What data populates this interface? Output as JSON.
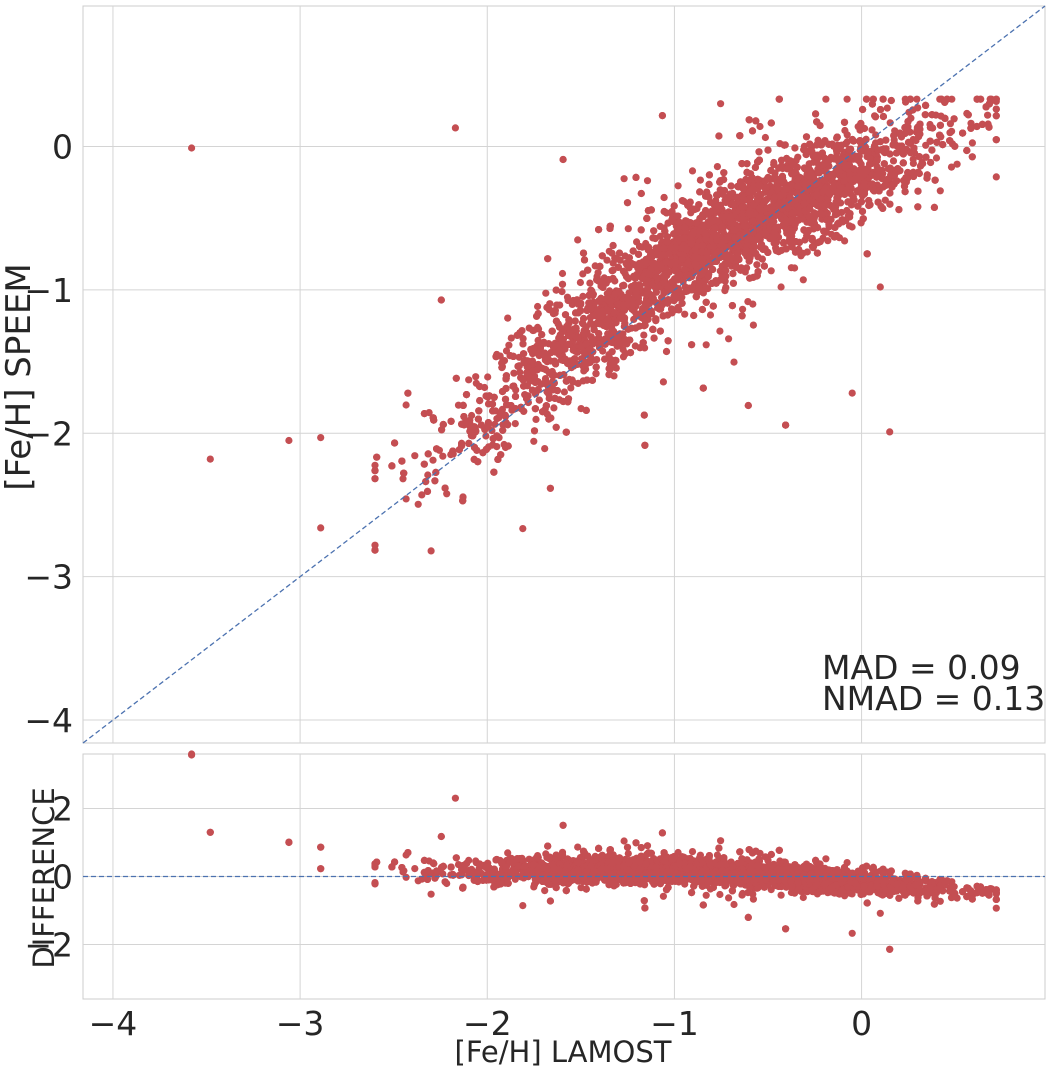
{
  "chart_data": [
    {
      "type": "scatter",
      "panel": "top",
      "xlabel": "",
      "ylabel": "[Fe/H]  SPEEM",
      "xlim": [
        -4.16,
        0.98
      ],
      "ylim": [
        -4.16,
        0.98
      ],
      "xticks": [
        -4,
        -3,
        -2,
        -1,
        0
      ],
      "yticks": [
        -4,
        -3,
        -2,
        -1,
        0
      ],
      "ytick_labels": [
        "−4",
        "−3",
        "−2",
        "−1",
        "0"
      ],
      "grid": true,
      "point_color": "#c44e52",
      "reference_line": {
        "type": "one-to-one",
        "style": "dashed",
        "color": "#4c72b0"
      },
      "annotations": [
        "MAD = 0.09",
        "NMAD = 0.13"
      ],
      "annotation_position": "bottom-right",
      "outliers": [
        {
          "x": -3.58,
          "y": -0.01
        },
        {
          "x": -3.48,
          "y": -2.18
        },
        {
          "x": -3.06,
          "y": -2.05
        },
        {
          "x": -2.89,
          "y": -2.03
        },
        {
          "x": -2.89,
          "y": -2.66
        },
        {
          "x": -2.3,
          "y": -2.82
        },
        {
          "x": -2.17,
          "y": 0.13
        },
        {
          "x": 0.15,
          "y": -1.99
        },
        {
          "x": 0.1,
          "y": -0.98
        },
        {
          "x": -0.05,
          "y": -1.72
        }
      ],
      "cloud": {
        "description_points": "dense cloud following slope ~0.66 above [Fe/H]=-1 and ~1:1 below",
        "x_range": [
          -2.6,
          0.72
        ],
        "y_range": [
          -2.83,
          0.33
        ]
      }
    },
    {
      "type": "scatter",
      "panel": "bottom",
      "xlabel": "[Fe/H]  LAMOST",
      "ylabel": "DIFFERENCE",
      "xlim": [
        -4.16,
        0.98
      ],
      "ylim": [
        -3.6,
        3.6
      ],
      "xticks": [
        -4,
        -3,
        -2,
        -1,
        0
      ],
      "xtick_labels": [
        "−4",
        "−3",
        "−2",
        "−1",
        "0"
      ],
      "yticks": [
        -2,
        0,
        2
      ],
      "ytick_labels": [
        "−2",
        "0",
        "2"
      ],
      "grid": true,
      "point_color": "#c44e52",
      "reference_line": {
        "type": "zero",
        "style": "dashed",
        "color": "#4c72b0"
      },
      "outliers": [
        {
          "x": -3.58,
          "y": 3.6
        },
        {
          "x": -3.48,
          "y": 1.3
        },
        {
          "x": -3.06,
          "y": 1.0
        },
        {
          "x": -2.89,
          "y": 0.86
        },
        {
          "x": -2.89,
          "y": 0.23
        },
        {
          "x": 0.15,
          "y": -2.14
        }
      ]
    }
  ]
}
